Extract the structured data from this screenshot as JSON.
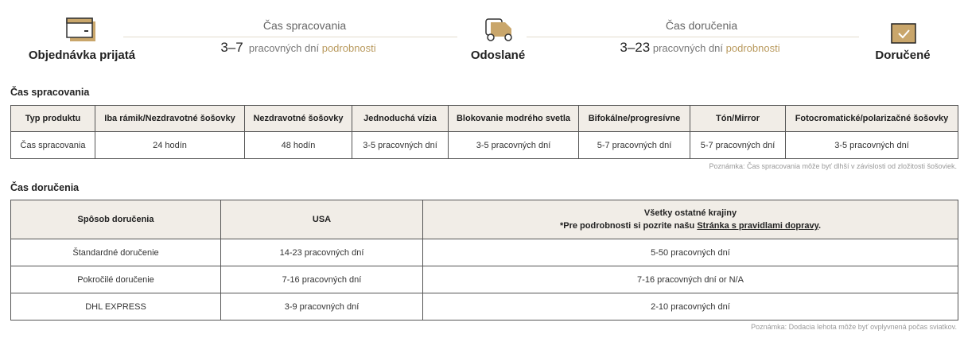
{
  "timeline": {
    "steps": [
      {
        "label": "Objednávka prijatá",
        "icon": "credit-card-icon"
      },
      {
        "label": "Odoslané",
        "icon": "truck-icon"
      },
      {
        "label": "Doručené",
        "icon": "calendar-check-icon"
      }
    ],
    "segments": [
      {
        "title": "Čas spracovania",
        "range": "3–7",
        "unit": "pracovných dní",
        "link": "podrobnosti"
      },
      {
        "title": "Čas doručenia",
        "range": "3–23",
        "unit": "pracovných dní",
        "link": "podrobnosti"
      }
    ],
    "accent_color": "#b99a5e"
  },
  "processing": {
    "title": "Čas spracovania",
    "headers": [
      "Typ produktu",
      "Iba rámik/Nezdravotné šošovky",
      "Nezdravotné šošovky",
      "Jednoduchá vízia",
      "Blokovanie modrého svetla",
      "Bifokálne/progresívne",
      "Tón/Mirror",
      "Fotocromatické/polarizačné šošovky"
    ],
    "row": [
      "Čas spracovania",
      "24 hodín",
      "48 hodín",
      "3-5 pracovných dní",
      "3-5 pracovných dní",
      "5-7 pracovných dní",
      "5-7 pracovných dní",
      "3-5 pracovných dní"
    ],
    "note": "Poznámka: Čas spracovania môže byť dlhší v závislosti od zložitosti šošoviek."
  },
  "delivery": {
    "title": "Čas doručenia",
    "headers": [
      "Spôsob doručenia",
      "USA",
      "Všetky ostatné krajiny"
    ],
    "header_note_prefix": "*Pre podrobnosti si pozrite našu ",
    "header_note_link": "Stránka s pravidlami dopravy",
    "header_note_suffix": ".",
    "rows": [
      [
        "Štandardné doručenie",
        "14-23 pracovných dní",
        "5-50 pracovných dní"
      ],
      [
        "Pokročilé doručenie",
        "7-16 pracovných dní",
        "7-16 pracovných dní or N/A"
      ],
      [
        "DHL EXPRESS",
        "3-9 pracovných dní",
        "2-10 pracovných dní"
      ]
    ],
    "note": "Poznámka: Dodacia lehota môže byť ovplyvnená počas sviatkov."
  }
}
